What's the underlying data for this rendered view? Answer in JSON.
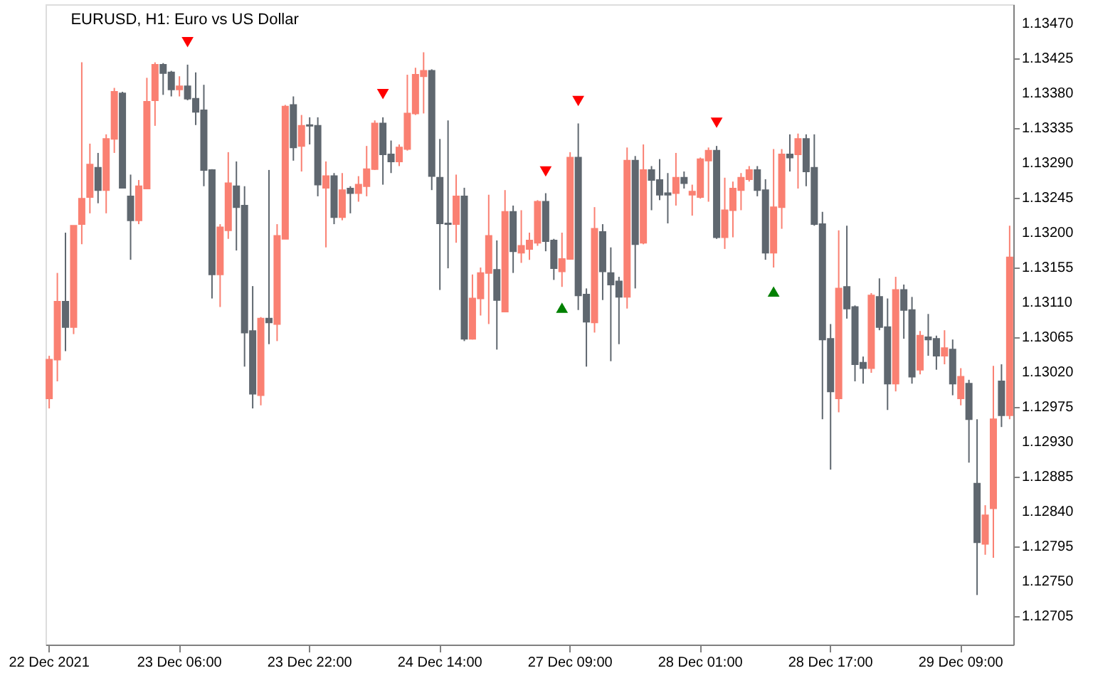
{
  "chart_data": {
    "type": "candlestick",
    "title": "EURUSD, H1:  Euro vs US Dollar",
    "categories": [
      "22 Dec 2021",
      null,
      null,
      null,
      null,
      null,
      null,
      null,
      null,
      null,
      null,
      null,
      null,
      null,
      null,
      null,
      "23 Dec 06:00",
      null,
      null,
      null,
      null,
      null,
      null,
      null,
      null,
      null,
      null,
      null,
      null,
      null,
      null,
      null,
      "23 Dec 22:00",
      null,
      null,
      null,
      null,
      null,
      null,
      null,
      null,
      null,
      null,
      null,
      null,
      null,
      null,
      null,
      "24 Dec 14:00",
      null,
      null,
      null,
      null,
      null,
      null,
      null,
      null,
      null,
      null,
      null,
      null,
      null,
      null,
      null,
      "27 Dec 09:00",
      null,
      null,
      null,
      null,
      null,
      null,
      null,
      null,
      null,
      null,
      null,
      null,
      null,
      null,
      null,
      "28 Dec 01:00",
      null,
      null,
      null,
      null,
      null,
      null,
      null,
      null,
      null,
      null,
      null,
      null,
      null,
      null,
      null,
      "28 Dec 17:00",
      null,
      null,
      null,
      null,
      null,
      null,
      null,
      null,
      null,
      null,
      null,
      null,
      null,
      null,
      null,
      "29 Dec 09:00",
      null,
      null,
      null,
      null,
      null,
      null
    ],
    "colors": [
      "#fa8072",
      "#fa8072",
      "#5f676f",
      "#fa8072",
      "#fa8072",
      "#fa8072",
      "#5f676f",
      "#fa8072",
      "#fa8072",
      "#5f676f",
      "#5f676f",
      "#fa8072",
      "#fa8072",
      "#fa8072",
      "#5f676f",
      "#5f676f",
      "#fa8072",
      "#5f676f",
      "#5f676f",
      "#5f676f",
      "#5f676f",
      "#fa8072",
      "#fa8072",
      "#5f676f",
      "#5f676f",
      "#5f676f",
      "#fa8072",
      "#5f676f",
      "#fa8072",
      "#fa8072",
      "#5f676f",
      "#fa8072",
      "#5f676f",
      "#5f676f",
      "#fa8072",
      "#5f676f",
      "#fa8072",
      "#5f676f",
      "#fa8072",
      "#fa8072",
      "#fa8072",
      "#5f676f",
      "#5f676f",
      "#fa8072",
      "#fa8072",
      "#fa8072",
      "#fa8072",
      "#5f676f",
      "#5f676f",
      "#5f676f",
      "#fa8072",
      "#5f676f",
      "#fa8072",
      "#fa8072",
      "#fa8072",
      "#5f676f",
      "#fa8072",
      "#5f676f",
      "#fa8072",
      "#fa8072",
      "#fa8072",
      "#5f676f",
      "#5f676f",
      "#fa8072",
      "#fa8072",
      "#5f676f",
      "#5f676f",
      "#fa8072",
      "#5f676f",
      "#5f676f",
      "#5f676f",
      "#fa8072",
      "#5f676f",
      "#fa8072",
      "#5f676f",
      "#5f676f",
      "#5f676f",
      "#fa8072",
      "#5f676f",
      "#fa8072",
      "#fa8072",
      "#fa8072",
      "#5f676f",
      "#fa8072",
      "#fa8072",
      "#fa8072",
      "#fa8072",
      "#5f676f",
      "#5f676f",
      "#fa8072",
      "#fa8072",
      "#5f676f",
      "#fa8072",
      "#5f676f",
      "#5f676f",
      "#5f676f",
      "#5f676f",
      "#fa8072",
      "#5f676f",
      "#5f676f",
      "#5f676f",
      "#fa8072",
      "#5f676f",
      "#5f676f",
      "#fa8072",
      "#5f676f",
      "#5f676f",
      "#fa8072",
      "#5f676f",
      "#5f676f",
      "#fa8072",
      "#5f676f",
      "#fa8072",
      "#5f676f",
      "#5f676f",
      "#fa8072",
      "#fa8072",
      "#5f676f",
      "#fa8072"
    ],
    "ohlc": [
      [
        1.12986,
        1.13041,
        1.12973,
        1.13036
      ],
      [
        1.13036,
        1.13148,
        1.13008,
        1.13111
      ],
      [
        1.13111,
        1.132,
        1.13047,
        1.13078
      ],
      [
        1.13078,
        1.13209,
        1.13069,
        1.13209
      ],
      [
        1.13211,
        1.1342,
        1.13185,
        1.13244
      ],
      [
        1.13246,
        1.13315,
        1.13225,
        1.13288
      ],
      [
        1.13284,
        1.13303,
        1.13238,
        1.13255
      ],
      [
        1.13255,
        1.13327,
        1.13225,
        1.13321
      ],
      [
        1.13321,
        1.13387,
        1.13303,
        1.13382
      ],
      [
        1.1338,
        1.13382,
        1.13257,
        1.13258
      ],
      [
        1.13247,
        1.13275,
        1.13165,
        1.13216
      ],
      [
        1.13216,
        1.13268,
        1.13211,
        1.1326
      ],
      [
        1.13257,
        1.134,
        1.13257,
        1.13369
      ],
      [
        1.13371,
        1.1342,
        1.13338,
        1.13417
      ],
      [
        1.13417,
        1.13419,
        1.13378,
        1.13406
      ],
      [
        1.13407,
        1.13409,
        1.13376,
        1.13385
      ],
      [
        1.13385,
        1.13402,
        1.13376,
        1.13389
      ],
      [
        1.13389,
        1.13417,
        1.13371,
        1.13373
      ],
      [
        1.13373,
        1.13407,
        1.13339,
        1.13356
      ],
      [
        1.13358,
        1.13391,
        1.1326,
        1.13281
      ],
      [
        1.13281,
        1.13282,
        1.13115,
        1.13146
      ],
      [
        1.13146,
        1.13211,
        1.13104,
        1.13207
      ],
      [
        1.13203,
        1.13304,
        1.13192,
        1.13264
      ],
      [
        1.1326,
        1.13292,
        1.13177,
        1.13233
      ],
      [
        1.13235,
        1.1326,
        1.13027,
        1.13071
      ],
      [
        1.13073,
        1.13131,
        1.12973,
        1.12992
      ],
      [
        1.1299,
        1.13091,
        1.12977,
        1.13089
      ],
      [
        1.13089,
        1.13281,
        1.13056,
        1.13084
      ],
      [
        1.13082,
        1.13211,
        1.1306,
        1.13196
      ],
      [
        1.13192,
        1.13365,
        1.13192,
        1.13363
      ],
      [
        1.13365,
        1.13376,
        1.13293,
        1.1331
      ],
      [
        1.13312,
        1.13352,
        1.13279,
        1.13338
      ],
      [
        1.13339,
        1.13349,
        1.13314,
        1.13338
      ],
      [
        1.13338,
        1.13349,
        1.13247,
        1.13262
      ],
      [
        1.13258,
        1.13292,
        1.13181,
        1.13273
      ],
      [
        1.13273,
        1.13277,
        1.13211,
        1.1322
      ],
      [
        1.1322,
        1.13277,
        1.13216,
        1.13255
      ],
      [
        1.13257,
        1.1326,
        1.13225,
        1.13251
      ],
      [
        1.13251,
        1.13273,
        1.1324,
        1.13262
      ],
      [
        1.1326,
        1.13312,
        1.13247,
        1.13282
      ],
      [
        1.13282,
        1.13345,
        1.13281,
        1.13341
      ],
      [
        1.13341,
        1.13349,
        1.13262,
        1.13301
      ],
      [
        1.13301,
        1.13319,
        1.13277,
        1.13292
      ],
      [
        1.13292,
        1.13314,
        1.13286,
        1.1331
      ],
      [
        1.13308,
        1.13404,
        1.13306,
        1.13354
      ],
      [
        1.13354,
        1.13413,
        1.13352,
        1.13404
      ],
      [
        1.13402,
        1.13433,
        1.13354,
        1.13409
      ],
      [
        1.13409,
        1.13411,
        1.13255,
        1.13273
      ],
      [
        1.13271,
        1.13321,
        1.13126,
        1.13212
      ],
      [
        1.13212,
        1.13345,
        1.13154,
        1.13211
      ],
      [
        1.13211,
        1.13275,
        1.13187,
        1.13247
      ],
      [
        1.13247,
        1.13258,
        1.1306,
        1.13063
      ],
      [
        1.13063,
        1.13146,
        1.13062,
        1.13115
      ],
      [
        1.13115,
        1.13155,
        1.13093,
        1.13148
      ],
      [
        1.13148,
        1.13249,
        1.13082,
        1.13196
      ],
      [
        1.13152,
        1.1319,
        1.13049,
        1.13113
      ],
      [
        1.13098,
        1.13255,
        1.13098,
        1.13227
      ],
      [
        1.13227,
        1.13235,
        1.13148,
        1.13176
      ],
      [
        1.13174,
        1.13229,
        1.13161,
        1.13183
      ],
      [
        1.13179,
        1.132,
        1.13165,
        1.1319
      ],
      [
        1.13187,
        1.13242,
        1.13183,
        1.1324
      ],
      [
        1.1324,
        1.13251,
        1.13176,
        1.13189
      ],
      [
        1.1319,
        1.13192,
        1.13139,
        1.13154
      ],
      [
        1.1315,
        1.132,
        1.1313,
        1.13166
      ],
      [
        1.13166,
        1.13304,
        1.13165,
        1.13297
      ],
      [
        1.13297,
        1.13341,
        1.131,
        1.13119
      ],
      [
        1.1312,
        1.13128,
        1.13027,
        1.13085
      ],
      [
        1.13084,
        1.13233,
        1.13071,
        1.13205
      ],
      [
        1.13201,
        1.13211,
        1.13113,
        1.1315
      ],
      [
        1.13148,
        1.13181,
        1.13034,
        1.13133
      ],
      [
        1.13137,
        1.13143,
        1.13056,
        1.13117
      ],
      [
        1.13117,
        1.1331,
        1.13102,
        1.13293
      ],
      [
        1.13293,
        1.13299,
        1.13128,
        1.13185
      ],
      [
        1.13187,
        1.13314,
        1.13185,
        1.13281
      ],
      [
        1.13281,
        1.13286,
        1.13229,
        1.13268
      ],
      [
        1.13268,
        1.13295,
        1.13242,
        1.13249
      ],
      [
        1.13251,
        1.13277,
        1.13212,
        1.13249
      ],
      [
        1.13251,
        1.13303,
        1.13235,
        1.13271
      ],
      [
        1.13271,
        1.13279,
        1.13257,
        1.13264
      ],
      [
        1.13249,
        1.13262,
        1.13222,
        1.13253
      ],
      [
        1.13246,
        1.13297,
        1.13244,
        1.13295
      ],
      [
        1.13293,
        1.1331,
        1.1324,
        1.13306
      ],
      [
        1.13306,
        1.13312,
        1.13192,
        1.13194
      ],
      [
        1.13194,
        1.13271,
        1.13179,
        1.13229
      ],
      [
        1.13229,
        1.13266,
        1.13194,
        1.13257
      ],
      [
        1.13255,
        1.13277,
        1.13229,
        1.13271
      ],
      [
        1.13269,
        1.13286,
        1.13266,
        1.13281
      ],
      [
        1.13281,
        1.13286,
        1.13247,
        1.13255
      ],
      [
        1.13255,
        1.13269,
        1.13165,
        1.13174
      ],
      [
        1.13174,
        1.13308,
        1.13155,
        1.13233
      ],
      [
        1.13233,
        1.13308,
        1.13205,
        1.13301
      ],
      [
        1.13301,
        1.13327,
        1.13279,
        1.13297
      ],
      [
        1.13301,
        1.13328,
        1.13257,
        1.13321
      ],
      [
        1.13321,
        1.13327,
        1.1326,
        1.13279
      ],
      [
        1.13284,
        1.13327,
        1.13209,
        1.13211
      ],
      [
        1.13211,
        1.13227,
        1.12959,
        1.13062
      ],
      [
        1.13063,
        1.13082,
        1.12894,
        1.12995
      ],
      [
        1.12986,
        1.13203,
        1.12968,
        1.13128
      ],
      [
        1.1313,
        1.13209,
        1.13089,
        1.13102
      ],
      [
        1.13104,
        1.13106,
        1.13008,
        1.1303
      ],
      [
        1.13032,
        1.1304,
        1.13005,
        1.13025
      ],
      [
        1.13025,
        1.13122,
        1.13019,
        1.13119
      ],
      [
        1.13117,
        1.13141,
        1.13074,
        1.13078
      ],
      [
        1.13078,
        1.13115,
        1.12971,
        1.13005
      ],
      [
        1.13005,
        1.13143,
        1.12995,
        1.13126
      ],
      [
        1.13126,
        1.13133,
        1.13063,
        1.131
      ],
      [
        1.131,
        1.13117,
        1.13005,
        1.13014
      ],
      [
        1.13023,
        1.13073,
        1.13017,
        1.13067
      ],
      [
        1.13065,
        1.13095,
        1.13041,
        1.13062
      ],
      [
        1.13063,
        1.13067,
        1.13023,
        1.13041
      ],
      [
        1.13041,
        1.13074,
        1.1303,
        1.13051
      ],
      [
        1.13049,
        1.13062,
        1.1299,
        1.13005
      ],
      [
        1.12986,
        1.13025,
        1.12977,
        1.13014
      ],
      [
        1.13005,
        1.1301,
        1.12903,
        1.12959
      ],
      [
        1.12876,
        1.12959,
        1.12732,
        1.128
      ],
      [
        1.12798,
        1.12848,
        1.12784,
        1.12835
      ],
      [
        1.12844,
        1.13028,
        1.1278,
        1.12959
      ],
      [
        1.13008,
        1.1303,
        1.12949,
        1.12964
      ],
      [
        1.12964,
        1.13209,
        1.12959,
        1.13168
      ]
    ],
    "series": [
      {
        "type": "scatter",
        "marker": "triangle",
        "color": "#ff0000",
        "values": [
          null,
          null,
          null,
          null,
          null,
          null,
          null,
          null,
          null,
          null,
          null,
          null,
          null,
          null,
          null,
          null,
          null,
          1.13446,
          null,
          null,
          null,
          null,
          null,
          null,
          null,
          null,
          null,
          null,
          null,
          null,
          null,
          null,
          null,
          null,
          null,
          null,
          null,
          null,
          null,
          null,
          null,
          1.13379,
          null,
          null,
          null,
          null,
          null,
          null,
          null,
          null,
          null,
          null,
          null,
          null,
          null,
          null,
          null,
          null,
          null,
          null,
          null,
          1.13279,
          null,
          null,
          null,
          1.1337,
          null,
          null,
          null,
          null,
          null,
          null,
          null,
          null,
          null,
          null,
          null,
          null,
          null,
          null,
          null,
          null,
          1.13342,
          null,
          null,
          null,
          null,
          null,
          null,
          null,
          null,
          null,
          null,
          null,
          null,
          null,
          null,
          null,
          null,
          null,
          null,
          null,
          null,
          null,
          null,
          null,
          null,
          null,
          null,
          null,
          null,
          null,
          null,
          null,
          null,
          null,
          null,
          null,
          null
        ]
      },
      {
        "type": "scatter",
        "marker": "triangle",
        "color": "#008000",
        "values": [
          null,
          null,
          null,
          null,
          null,
          null,
          null,
          null,
          null,
          null,
          null,
          null,
          null,
          null,
          null,
          null,
          null,
          null,
          null,
          null,
          null,
          null,
          null,
          null,
          null,
          null,
          null,
          null,
          null,
          null,
          null,
          null,
          null,
          null,
          null,
          null,
          null,
          null,
          null,
          null,
          null,
          null,
          null,
          null,
          null,
          null,
          null,
          null,
          null,
          null,
          null,
          null,
          null,
          null,
          null,
          null,
          null,
          null,
          null,
          null,
          null,
          null,
          null,
          1.13103,
          null,
          null,
          null,
          null,
          null,
          null,
          null,
          null,
          null,
          null,
          null,
          null,
          null,
          null,
          null,
          null,
          null,
          null,
          null,
          null,
          null,
          null,
          null,
          null,
          null,
          1.13124,
          null,
          null,
          null,
          null,
          null,
          null,
          null,
          null,
          null,
          null,
          null,
          null,
          null,
          null,
          null,
          null,
          null,
          null,
          null,
          null,
          null,
          null,
          null,
          null,
          null,
          null,
          null,
          null,
          null
        ]
      }
    ],
    "ylim": [
      1.12668,
      1.13495
    ],
    "yticks": [
      1.12705,
      {
        "value": 1.1275,
        "label": "1.12750"
      },
      1.12795,
      {
        "value": 1.1284,
        "label": "1.12840"
      },
      1.12885,
      {
        "value": 1.1293,
        "label": "1.12930"
      },
      1.12975,
      {
        "value": 1.1302,
        "label": "1.13020"
      },
      1.13065,
      {
        "value": 1.1311,
        "label": "1.13110"
      },
      1.13155,
      {
        "value": 1.132,
        "label": "1.13200"
      },
      1.13245,
      {
        "value": 1.1329,
        "label": "1.13290"
      },
      1.13335,
      {
        "value": 1.1338,
        "label": "1.13380"
      },
      1.13425,
      {
        "value": 1.1347,
        "label": "1.13470"
      }
    ]
  }
}
